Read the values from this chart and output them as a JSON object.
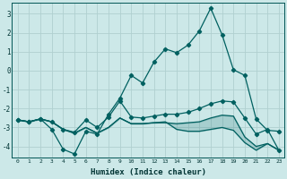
{
  "xlabel": "Humidex (Indice chaleur)",
  "ylabel": "",
  "bg_color": "#cce8e8",
  "grid_color": "#b0d0d0",
  "line_color": "#006060",
  "xlim": [
    -0.5,
    23.5
  ],
  "ylim": [
    -4.6,
    3.6
  ],
  "yticks": [
    -4,
    -3,
    -2,
    -1,
    0,
    1,
    2,
    3
  ],
  "xticks": [
    0,
    1,
    2,
    3,
    4,
    5,
    6,
    7,
    8,
    9,
    10,
    11,
    12,
    13,
    14,
    15,
    16,
    17,
    18,
    19,
    20,
    21,
    22,
    23
  ],
  "line1_x": [
    0,
    1,
    2,
    3,
    4,
    5,
    6,
    7,
    8,
    9,
    10,
    11,
    12,
    13,
    14,
    15,
    16,
    17,
    18,
    19,
    20,
    21,
    22,
    23
  ],
  "line1_y": [
    -2.6,
    -2.7,
    -2.55,
    -3.1,
    -4.15,
    -4.4,
    -3.2,
    -3.35,
    -2.3,
    -1.45,
    -0.25,
    -0.65,
    0.45,
    1.15,
    0.95,
    1.35,
    2.1,
    3.3,
    1.9,
    0.05,
    -0.25,
    -2.55,
    -3.15,
    -3.2
  ],
  "line2_x": [
    0,
    1,
    2,
    3,
    4,
    5,
    6,
    7,
    8,
    9,
    10,
    11,
    12,
    13,
    14,
    15,
    16,
    17,
    18,
    19,
    20,
    21,
    22,
    23
  ],
  "line2_y": [
    -2.6,
    -2.7,
    -2.55,
    -2.7,
    -3.1,
    -3.25,
    -2.6,
    -3.0,
    -2.45,
    -1.6,
    -2.45,
    -2.5,
    -2.4,
    -2.3,
    -2.3,
    -2.2,
    -2.0,
    -1.75,
    -1.6,
    -1.65,
    -2.5,
    -3.35,
    -3.1,
    -4.2
  ],
  "line3_x": [
    0,
    1,
    2,
    3,
    4,
    5,
    6,
    7,
    8,
    9,
    10,
    11,
    12,
    13,
    14,
    15,
    16,
    17,
    18,
    19,
    20,
    21,
    22,
    23
  ],
  "line3_y": [
    -2.6,
    -2.7,
    -2.55,
    -2.7,
    -3.1,
    -3.3,
    -3.0,
    -3.3,
    -3.0,
    -2.5,
    -2.8,
    -2.8,
    -2.75,
    -2.75,
    -2.8,
    -2.75,
    -2.7,
    -2.5,
    -2.35,
    -2.4,
    -3.5,
    -4.0,
    -3.85,
    -4.2
  ],
  "line4_x": [
    0,
    1,
    2,
    3,
    4,
    5,
    6,
    7,
    8,
    9,
    10,
    11,
    12,
    13,
    14,
    15,
    16,
    17,
    18,
    19,
    20,
    21,
    22,
    23
  ],
  "line4_y": [
    -2.6,
    -2.7,
    -2.55,
    -2.7,
    -3.1,
    -3.3,
    -3.0,
    -3.3,
    -3.0,
    -2.5,
    -2.8,
    -2.8,
    -2.75,
    -2.7,
    -3.1,
    -3.2,
    -3.2,
    -3.1,
    -3.0,
    -3.15,
    -3.8,
    -4.2,
    -3.85,
    -4.2
  ]
}
